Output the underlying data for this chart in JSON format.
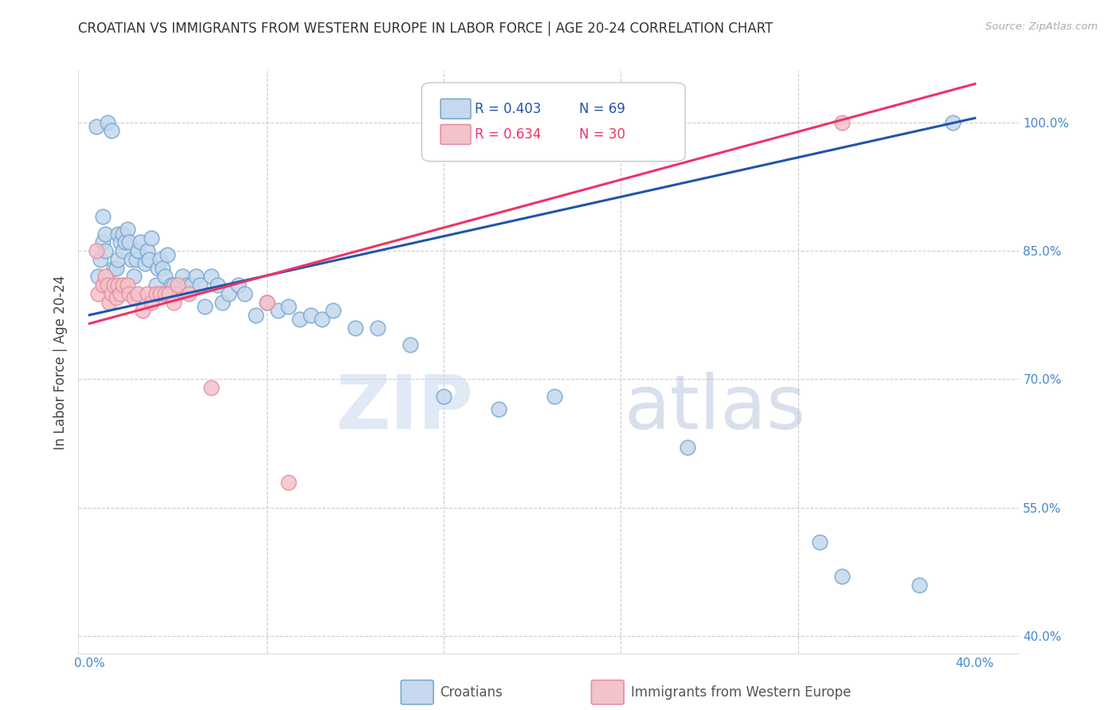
{
  "title": "CROATIAN VS IMMIGRANTS FROM WESTERN EUROPE IN LABOR FORCE | AGE 20-24 CORRELATION CHART",
  "source": "Source: ZipAtlas.com",
  "ylabel": "In Labor Force | Age 20-24",
  "xlim": [
    -0.005,
    0.42
  ],
  "ylim": [
    0.38,
    1.06
  ],
  "xtick_positions": [
    0.0,
    0.08,
    0.16,
    0.24,
    0.32,
    0.4
  ],
  "xticklabels_show": [
    "0.0%",
    "",
    "",
    "",
    "",
    "40.0%"
  ],
  "ytick_positions": [
    0.4,
    0.55,
    0.7,
    0.85,
    1.0
  ],
  "yticklabels": [
    "40.0%",
    "55.0%",
    "70.0%",
    "85.0%",
    "100.0%"
  ],
  "blue_scatter_color": "#C5D8EE",
  "blue_edge_color": "#7AAAD0",
  "pink_scatter_color": "#F4C2CB",
  "pink_edge_color": "#E88FA0",
  "blue_line_color": "#2255AA",
  "pink_line_color": "#EE3366",
  "legend_blue_r": "R = 0.403",
  "legend_blue_n": "N = 69",
  "legend_pink_r": "R = 0.634",
  "legend_pink_n": "N = 30",
  "watermark_zip": "ZIP",
  "watermark_atlas": "atlas",
  "background_color": "#FFFFFF",
  "grid_color": "#CCCCCC",
  "title_color": "#333333",
  "axis_tick_color": "#4488CC",
  "blue_trend_x0": 0.0,
  "blue_trend_y0": 0.775,
  "blue_trend_x1": 0.4,
  "blue_trend_y1": 1.005,
  "pink_trend_x0": 0.0,
  "pink_trend_y0": 0.765,
  "pink_trend_x1": 0.4,
  "pink_trend_y1": 1.045,
  "blue_points_x": [
    0.003,
    0.004,
    0.005,
    0.006,
    0.006,
    0.007,
    0.007,
    0.008,
    0.01,
    0.01,
    0.011,
    0.012,
    0.013,
    0.013,
    0.014,
    0.015,
    0.015,
    0.016,
    0.017,
    0.018,
    0.019,
    0.02,
    0.021,
    0.022,
    0.023,
    0.025,
    0.026,
    0.027,
    0.028,
    0.03,
    0.031,
    0.032,
    0.033,
    0.034,
    0.035,
    0.037,
    0.038,
    0.04,
    0.042,
    0.044,
    0.046,
    0.048,
    0.05,
    0.052,
    0.055,
    0.058,
    0.06,
    0.063,
    0.067,
    0.07,
    0.075,
    0.08,
    0.085,
    0.09,
    0.095,
    0.1,
    0.105,
    0.11,
    0.12,
    0.13,
    0.145,
    0.16,
    0.185,
    0.21,
    0.27,
    0.33,
    0.34,
    0.375,
    0.39
  ],
  "blue_points_y": [
    0.995,
    0.82,
    0.84,
    0.89,
    0.86,
    0.85,
    0.87,
    1.0,
    0.99,
    0.81,
    0.83,
    0.83,
    0.84,
    0.87,
    0.86,
    0.87,
    0.85,
    0.86,
    0.875,
    0.86,
    0.84,
    0.82,
    0.84,
    0.85,
    0.86,
    0.835,
    0.85,
    0.84,
    0.865,
    0.81,
    0.83,
    0.84,
    0.83,
    0.82,
    0.845,
    0.81,
    0.81,
    0.8,
    0.82,
    0.81,
    0.81,
    0.82,
    0.81,
    0.785,
    0.82,
    0.81,
    0.79,
    0.8,
    0.81,
    0.8,
    0.775,
    0.79,
    0.78,
    0.785,
    0.77,
    0.775,
    0.77,
    0.78,
    0.76,
    0.76,
    0.74,
    0.68,
    0.665,
    0.68,
    0.62,
    0.51,
    0.47,
    0.46,
    1.0
  ],
  "pink_points_x": [
    0.003,
    0.004,
    0.006,
    0.007,
    0.008,
    0.009,
    0.01,
    0.011,
    0.012,
    0.013,
    0.014,
    0.015,
    0.017,
    0.018,
    0.02,
    0.022,
    0.024,
    0.026,
    0.028,
    0.03,
    0.032,
    0.034,
    0.036,
    0.038,
    0.04,
    0.045,
    0.055,
    0.08,
    0.09,
    0.34
  ],
  "pink_points_y": [
    0.85,
    0.8,
    0.81,
    0.82,
    0.81,
    0.79,
    0.8,
    0.81,
    0.795,
    0.81,
    0.8,
    0.81,
    0.81,
    0.8,
    0.795,
    0.8,
    0.78,
    0.8,
    0.79,
    0.8,
    0.8,
    0.8,
    0.8,
    0.79,
    0.81,
    0.8,
    0.69,
    0.79,
    0.58,
    1.0
  ]
}
